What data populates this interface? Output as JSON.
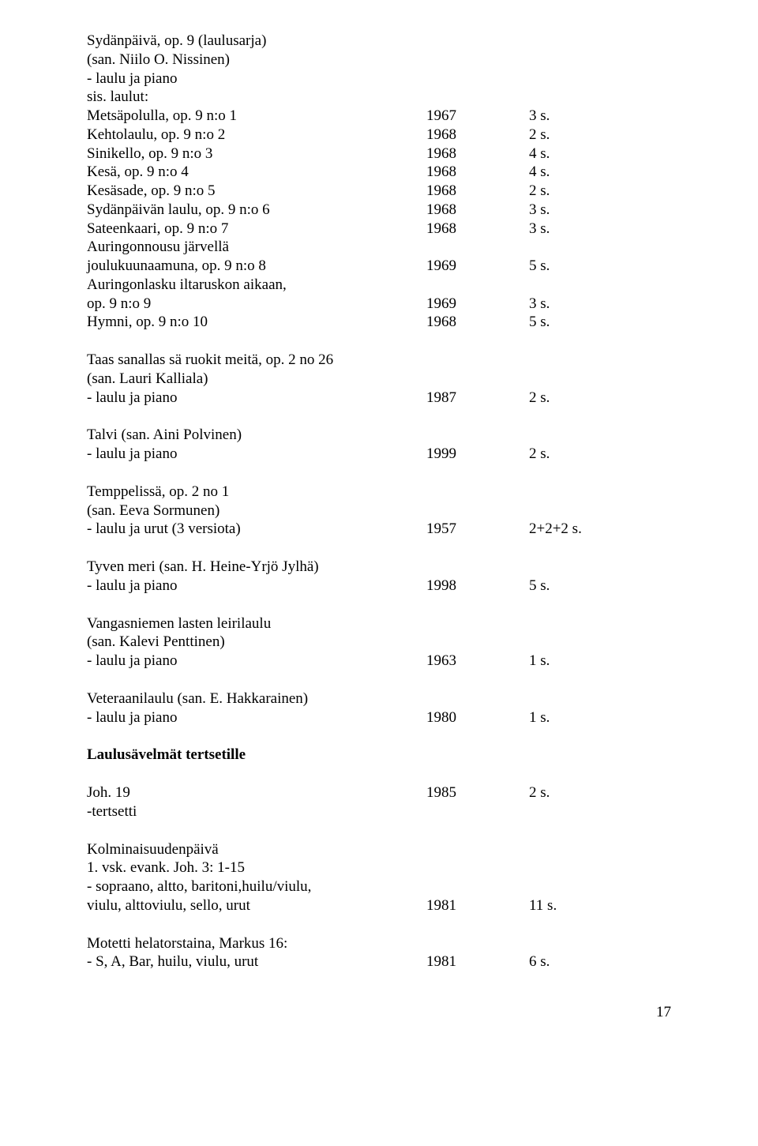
{
  "header": {
    "l1": "Sydänpäivä, op. 9 (laulusarja)",
    "l2": "(san. Niilo O. Nissinen)",
    "l3": "- laulu ja piano",
    "l4": "sis. laulut:"
  },
  "sydanpaiva": [
    {
      "label": "Metsäpolulla, op. 9 n:o 1",
      "year": "1967",
      "dur": "3 s."
    },
    {
      "label": "Kehtolaulu, op. 9 n:o 2",
      "year": "1968",
      "dur": "2 s."
    },
    {
      "label": "Sinikello, op. 9 n:o 3",
      "year": "1968",
      "dur": "4 s."
    },
    {
      "label": "Kesä, op. 9 n:o 4",
      "year": "1968",
      "dur": "4 s."
    },
    {
      "label": "Kesäsade, op. 9 n:o 5",
      "year": "1968",
      "dur": "2 s."
    },
    {
      "label": "Sydänpäivän laulu, op. 9 n:o 6",
      "year": "1968",
      "dur": "3 s."
    },
    {
      "label": "Sateenkaari, op. 9 n:o 7",
      "year": "1968",
      "dur": "3 s."
    }
  ],
  "sydanpaiva_multi1": {
    "l1": "Auringonnousu järvellä",
    "l2": "joulukuunaamuna, op. 9 n:o 8",
    "year": "1969",
    "dur": "5 s."
  },
  "sydanpaiva_multi2": {
    "l1": "Auringonlasku iltaruskon aikaan,",
    "l2": "op. 9 n:o 9",
    "year": "1969",
    "dur": "3 s."
  },
  "sydanpaiva_last": {
    "label": "Hymni, op. 9 n:o 10",
    "year": "1968",
    "dur": "5 s."
  },
  "taas": {
    "l1": "Taas sanallas sä ruokit meitä, op. 2 no 26",
    "l2": "(san. Lauri Kalliala)",
    "l3": "- laulu ja piano",
    "year": "1987",
    "dur": "2 s."
  },
  "talvi": {
    "l1": "Talvi (san. Aini Polvinen)",
    "l2": "- laulu ja piano",
    "year": "1999",
    "dur": "2 s."
  },
  "temppelissa": {
    "l1": "Temppelissä, op. 2 no  1",
    "l2": "(san. Eeva Sormunen)",
    "l3": "- laulu ja urut (3 versiota)",
    "year": "1957",
    "dur": "2+2+2 s."
  },
  "tyven": {
    "l1": "Tyven meri (san. H. Heine-Yrjö Jylhä)",
    "l2": "- laulu ja piano",
    "year": "1998",
    "dur": "5 s."
  },
  "vangas": {
    "l1": "Vangasniemen lasten leirilaulu",
    "l2": "(san. Kalevi Penttinen)",
    "l3": "- laulu ja piano",
    "year": "1963",
    "dur": "1 s."
  },
  "veteraani": {
    "l1": "Veteraanilaulu (san. E. Hakkarainen)",
    "l2": "- laulu ja piano",
    "year": "1980",
    "dur": "1 s."
  },
  "section_heading": "Laulusävelmät tertsetille",
  "joh19": {
    "l1": "Joh. 19",
    "year": "1985",
    "dur": "2 s.",
    "l2": "-tertsetti"
  },
  "kolmi": {
    "l1": "Kolminaisuudenpäivä",
    "l2": "1. vsk. evank. Joh. 3: 1-15",
    "l3": "- sopraano, altto, baritoni,huilu/viulu,",
    "l4": "viulu, alttoviulu, sello, urut",
    "year": "1981",
    "dur": "11 s."
  },
  "motetti": {
    "l1": "Motetti helatorstaina, Markus 16:",
    "l2": "- S, A, Bar, huilu, viulu, urut",
    "year": "1981",
    "dur": "6 s."
  },
  "page_number": "17"
}
